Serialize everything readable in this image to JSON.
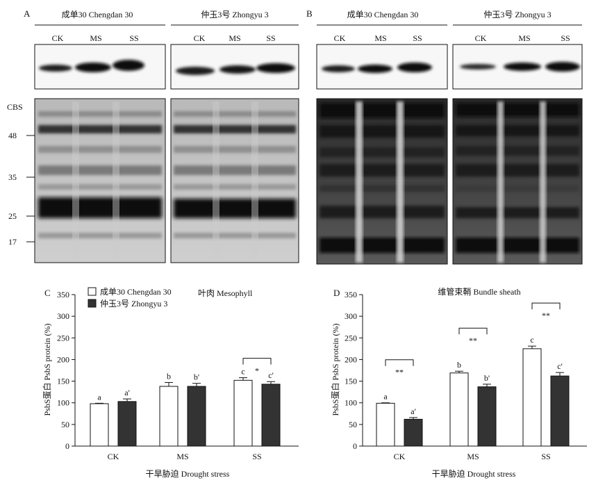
{
  "blots": {
    "panel_a": {
      "label": "A",
      "cultivars": [
        "成单30 Chengdan 30",
        "仲玉3号 Zhongyu 3"
      ],
      "lanes": [
        "CK",
        "MS",
        "SS"
      ]
    },
    "panel_b": {
      "label": "B",
      "cultivars": [
        "成单30 Chengdan 30",
        "仲玉3号 Zhongyu 3"
      ],
      "lanes": [
        "CK",
        "MS",
        "SS"
      ]
    },
    "gel_label": "CBS",
    "markers": [
      "48",
      "35",
      "25",
      "17"
    ]
  },
  "chart_data": [
    {
      "type": "bar",
      "panel": "C",
      "title": "叶肉 Mesophyll",
      "xlabel": "干旱胁迫 Drought stress",
      "ylabel": "PsbS蛋白 PsbS protein (%)",
      "ylim": [
        0,
        350
      ],
      "yticks": [
        "0",
        "50",
        "100",
        "150",
        "200",
        "250",
        "300",
        "350"
      ],
      "categories": [
        "CK",
        "MS",
        "SS"
      ],
      "legend": [
        "成单30 Chengdan 30",
        "仲玉3号 Zhongyu 3"
      ],
      "legend_position": "top-left",
      "series": [
        {
          "name": "成单30 Chengdan 30",
          "color": "#ffffff",
          "values": [
            98,
            138,
            152
          ],
          "errors": [
            1,
            9,
            6
          ],
          "labels": [
            "a",
            "b",
            "c"
          ]
        },
        {
          "name": "仲玉3号 Zhongyu 3",
          "color": "#333333",
          "values": [
            103,
            138,
            143
          ],
          "errors": [
            6,
            7,
            6
          ],
          "labels": [
            "a'",
            "b'",
            "c'"
          ]
        }
      ],
      "significance": [
        {
          "category": "SS",
          "mark": "*"
        }
      ]
    },
    {
      "type": "bar",
      "panel": "D",
      "title": "维管束鞘 Bundle sheath",
      "xlabel": "干旱胁迫 Drought stress",
      "ylabel": "PsbS蛋白 PsbS protein (%)",
      "ylim": [
        0,
        350
      ],
      "yticks": [
        "0",
        "50",
        "100",
        "150",
        "200",
        "250",
        "300",
        "350"
      ],
      "categories": [
        "CK",
        "MS",
        "SS"
      ],
      "series": [
        {
          "name": "成单30 Chengdan 30",
          "color": "#ffffff",
          "values": [
            99,
            169,
            225
          ],
          "errors": [
            1,
            4,
            6
          ],
          "labels": [
            "a",
            "b",
            "c"
          ]
        },
        {
          "name": "仲玉3号 Zhongyu 3",
          "color": "#333333",
          "values": [
            62,
            137,
            162
          ],
          "errors": [
            4,
            6,
            8
          ],
          "labels": [
            "a'",
            "b'",
            "c'"
          ]
        }
      ],
      "significance": [
        {
          "category": "CK",
          "mark": "**"
        },
        {
          "category": "MS",
          "mark": "**"
        },
        {
          "category": "SS",
          "mark": "**"
        }
      ]
    }
  ]
}
